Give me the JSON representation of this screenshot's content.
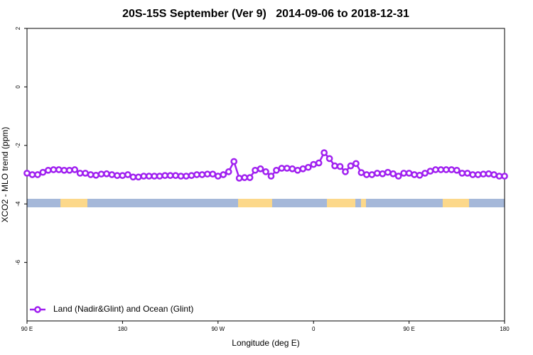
{
  "chart_data": {
    "type": "line",
    "title": "20S-15S September (Ver 9)   2014-09-06 to 2018-12-31",
    "x_label": "Longitude (deg E)",
    "y_label": "XCO2 - MLO trend (ppm)",
    "xlim": [
      90,
      540
    ],
    "xticks": [
      {
        "value": 90,
        "label": "90 E"
      },
      {
        "value": 180,
        "label": "180"
      },
      {
        "value": 270,
        "label": "90 W"
      },
      {
        "value": 360,
        "label": "0"
      },
      {
        "value": 450,
        "label": "90 E"
      },
      {
        "value": 540,
        "label": "180"
      }
    ],
    "ylim": [
      -8,
      2
    ],
    "yticks": [
      -6,
      -4,
      -2,
      0,
      2
    ],
    "x": [
      90,
      95,
      100,
      105,
      110,
      115,
      120,
      125,
      130,
      135,
      140,
      145,
      150,
      155,
      160,
      165,
      170,
      175,
      180,
      185,
      190,
      195,
      200,
      205,
      210,
      215,
      220,
      225,
      230,
      235,
      240,
      245,
      250,
      255,
      260,
      265,
      270,
      275,
      280,
      285,
      290,
      295,
      300,
      305,
      310,
      315,
      320,
      325,
      330,
      335,
      340,
      345,
      350,
      355,
      360,
      365,
      370,
      375,
      380,
      385,
      390,
      395,
      400,
      405,
      410,
      415,
      420,
      425,
      430,
      435,
      440,
      445,
      450,
      455,
      460,
      465,
      470,
      475,
      480,
      485,
      490,
      495,
      500,
      505,
      510,
      515,
      520,
      525,
      530,
      535,
      540
    ],
    "series": [
      {
        "name": "Land (Nadir&Glint) and Ocean (Glint)",
        "color": "#a020f0",
        "values": [
          -2.95,
          -3.0,
          -3.0,
          -2.92,
          -2.85,
          -2.83,
          -2.83,
          -2.85,
          -2.85,
          -2.83,
          -2.95,
          -2.95,
          -3.0,
          -3.02,
          -2.98,
          -2.97,
          -3.0,
          -3.03,
          -3.03,
          -3.0,
          -3.08,
          -3.08,
          -3.05,
          -3.05,
          -3.05,
          -3.05,
          -3.03,
          -3.03,
          -3.03,
          -3.05,
          -3.05,
          -3.03,
          -3.0,
          -3.0,
          -2.98,
          -2.98,
          -3.05,
          -3.0,
          -2.9,
          -2.55,
          -3.12,
          -3.1,
          -3.1,
          -2.85,
          -2.8,
          -2.9,
          -3.05,
          -2.85,
          -2.78,
          -2.78,
          -2.8,
          -2.85,
          -2.8,
          -2.75,
          -2.65,
          -2.6,
          -2.25,
          -2.45,
          -2.7,
          -2.72,
          -2.9,
          -2.7,
          -2.62,
          -2.93,
          -3.0,
          -3.0,
          -2.95,
          -2.97,
          -2.92,
          -2.97,
          -3.05,
          -2.95,
          -2.95,
          -3.0,
          -3.02,
          -2.95,
          -2.88,
          -2.83,
          -2.83,
          -2.83,
          -2.83,
          -2.85,
          -2.95,
          -2.95,
          -3.0,
          -3.0,
          -2.98,
          -2.97,
          -3.0,
          -3.05,
          -3.05
        ]
      }
    ],
    "land_ranges": [
      [
        121.5,
        146.9
      ],
      [
        288.9,
        321
      ],
      [
        372.6,
        399.4
      ],
      [
        404.7,
        409.4
      ],
      [
        481.7,
        506.5
      ]
    ],
    "legend": "bottom-left"
  }
}
